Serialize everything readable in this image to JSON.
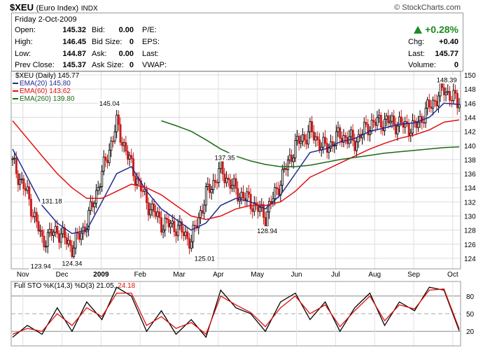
{
  "header": {
    "symbol": "$XEU",
    "name": "(Euro Index)",
    "exchange": "INDX",
    "brand": "© StockCharts.com"
  },
  "quote": {
    "date": "Friday  2-Oct-2009",
    "open_label": "Open:",
    "open": "145.32",
    "high_label": "High:",
    "high": "146.45",
    "low_label": "Low:",
    "low": "144.87",
    "prev_label": "Prev Close:",
    "prev": "145.37",
    "bid_label": "Bid:",
    "bid": "0.00",
    "bidsize_label": "Bid Size:",
    "bidsize": "0",
    "ask_label": "Ask:",
    "ask": "0.00",
    "asksize_label": "Ask Size:",
    "asksize": "0",
    "pe_label": "P/E:",
    "eps_label": "EPS:",
    "last_label_mid": "Last:",
    "vwap_label": "VWAP:",
    "pct_change": "+0.28%",
    "chg_label": "Chg:",
    "chg": "+0.40",
    "last_label": "Last:",
    "last": "145.77",
    "volume_label": "Volume:",
    "volume": "0"
  },
  "legend": {
    "main": "$XEU (Daily) 145.77",
    "ema20": "EMA(20) 145.80",
    "ema60": "EMA(60) 143.62",
    "ema260": "EMA(260) 139.80"
  },
  "sto_legend": {
    "label": "Full STO %K(14,3) %D(3) 21.05,",
    "d_value": "24.18"
  },
  "colors": {
    "ema20": "#1f2b8f",
    "ema60": "#e01010",
    "ema260": "#1a6b1a",
    "price_up": "#000000",
    "price_down": "#cc1e1e",
    "sto_k": "#000000",
    "sto_d": "#e01010"
  },
  "chart_data": [
    {
      "type": "line",
      "subtype": "candlestick",
      "title": "$XEU (Daily) 145.77",
      "x_ticks": [
        "Nov",
        "Dec",
        "2009",
        "Feb",
        "Mar",
        "Apr",
        "May",
        "Jun",
        "Jul",
        "Aug",
        "Sep",
        "Oct"
      ],
      "y_ticks": [
        124,
        126,
        128,
        130,
        132,
        134,
        136,
        138,
        140,
        142,
        144,
        146,
        148,
        150
      ],
      "ylim": [
        122.5,
        150.5
      ],
      "grid": true,
      "legend_position": "top-left",
      "annotations": [
        {
          "label": "123.94",
          "x": 0.063,
          "y": 123.94
        },
        {
          "label": "124.34",
          "x": 0.133,
          "y": 124.34
        },
        {
          "label": "131.18",
          "x": 0.088,
          "y": 131.18
        },
        {
          "label": "145.04",
          "x": 0.217,
          "y": 145.04
        },
        {
          "label": "137.35",
          "x": 0.475,
          "y": 137.35
        },
        {
          "label": "125.01",
          "x": 0.43,
          "y": 125.01
        },
        {
          "label": "128.94",
          "x": 0.57,
          "y": 128.94
        },
        {
          "label": "148.39",
          "x": 0.972,
          "y": 148.39
        }
      ],
      "series": [
        {
          "name": "$XEU",
          "x": [
            0.0,
            0.033,
            0.066,
            0.1,
            0.133,
            0.166,
            0.2,
            0.233,
            0.266,
            0.3,
            0.333,
            0.366,
            0.4,
            0.433,
            0.466,
            0.5,
            0.533,
            0.566,
            0.6,
            0.633,
            0.666,
            0.7,
            0.733,
            0.766,
            0.8,
            0.833,
            0.866,
            0.9,
            0.933,
            0.966,
            1.0
          ],
          "values": [
            137.5,
            133.0,
            126.5,
            128.0,
            125.5,
            129.0,
            136.0,
            143.0,
            137.0,
            132.0,
            129.0,
            128.5,
            126.5,
            133.0,
            136.5,
            133.5,
            132.0,
            130.0,
            135.0,
            140.0,
            142.0,
            139.5,
            141.5,
            140.5,
            143.0,
            143.5,
            143.0,
            142.5,
            145.5,
            148.0,
            145.77
          ]
        },
        {
          "name": "EMA(20)",
          "x": [
            0.0,
            0.033,
            0.066,
            0.1,
            0.133,
            0.166,
            0.2,
            0.233,
            0.266,
            0.3,
            0.333,
            0.366,
            0.4,
            0.433,
            0.466,
            0.5,
            0.533,
            0.566,
            0.6,
            0.633,
            0.666,
            0.7,
            0.733,
            0.766,
            0.8,
            0.833,
            0.866,
            0.9,
            0.933,
            0.966,
            1.0
          ],
          "values": [
            139.5,
            135.5,
            131.5,
            129.0,
            127.5,
            128.0,
            132.0,
            136.0,
            137.0,
            133.5,
            131.0,
            129.5,
            128.0,
            129.0,
            131.5,
            132.5,
            132.0,
            131.0,
            133.0,
            136.0,
            139.0,
            139.5,
            140.5,
            141.0,
            142.0,
            142.5,
            143.0,
            143.2,
            144.0,
            146.0,
            145.8
          ]
        },
        {
          "name": "EMA(60)",
          "x": [
            0.0,
            0.033,
            0.066,
            0.1,
            0.133,
            0.166,
            0.2,
            0.233,
            0.266,
            0.3,
            0.333,
            0.366,
            0.4,
            0.433,
            0.466,
            0.5,
            0.533,
            0.566,
            0.6,
            0.633,
            0.666,
            0.7,
            0.733,
            0.766,
            0.8,
            0.833,
            0.866,
            0.9,
            0.933,
            0.966,
            1.0
          ],
          "values": [
            143.5,
            141.0,
            138.5,
            136.0,
            134.0,
            132.5,
            132.5,
            133.5,
            134.5,
            134.0,
            133.0,
            131.5,
            130.0,
            129.5,
            130.0,
            131.0,
            131.5,
            131.5,
            132.0,
            133.5,
            135.5,
            136.5,
            137.5,
            138.5,
            139.5,
            140.3,
            141.0,
            141.5,
            142.2,
            143.3,
            143.62
          ]
        },
        {
          "name": "EMA(260)",
          "x": [
            0.0,
            0.033,
            0.066,
            0.1,
            0.133,
            0.166,
            0.2,
            0.233,
            0.266,
            0.3,
            0.333,
            0.366,
            0.4,
            0.433,
            0.466,
            0.5,
            0.533,
            0.566,
            0.6,
            0.633,
            0.666,
            0.7,
            0.733,
            0.766,
            0.8,
            0.833,
            0.866,
            0.9,
            0.933,
            0.966,
            1.0
          ],
          "values": [
            null,
            null,
            null,
            null,
            null,
            null,
            null,
            null,
            null,
            null,
            143.5,
            142.8,
            142.0,
            140.8,
            139.5,
            138.5,
            137.8,
            137.3,
            137.0,
            137.0,
            137.2,
            137.6,
            138.0,
            138.3,
            138.6,
            138.9,
            139.1,
            139.3,
            139.5,
            139.7,
            139.8
          ]
        }
      ]
    },
    {
      "type": "line",
      "title": "Full STO %K(14,3) %D(3) 21.05, 24.18",
      "y_ticks": [
        20,
        50,
        80
      ],
      "ylim": [
        0,
        100
      ],
      "grid": true,
      "series": [
        {
          "name": "%K",
          "x": [
            0.0,
            0.033,
            0.066,
            0.1,
            0.133,
            0.166,
            0.2,
            0.233,
            0.266,
            0.3,
            0.333,
            0.366,
            0.4,
            0.433,
            0.466,
            0.5,
            0.533,
            0.566,
            0.6,
            0.633,
            0.666,
            0.7,
            0.733,
            0.766,
            0.8,
            0.833,
            0.866,
            0.9,
            0.933,
            0.966,
            1.0
          ],
          "values": [
            10,
            30,
            15,
            60,
            20,
            70,
            40,
            95,
            80,
            20,
            55,
            15,
            40,
            10,
            90,
            60,
            50,
            20,
            70,
            85,
            40,
            70,
            20,
            60,
            85,
            30,
            70,
            55,
            95,
            90,
            21.05
          ]
        },
        {
          "name": "%D",
          "x": [
            0.0,
            0.033,
            0.066,
            0.1,
            0.133,
            0.166,
            0.2,
            0.233,
            0.266,
            0.3,
            0.333,
            0.366,
            0.4,
            0.433,
            0.466,
            0.5,
            0.533,
            0.566,
            0.6,
            0.633,
            0.666,
            0.7,
            0.733,
            0.766,
            0.8,
            0.833,
            0.866,
            0.9,
            0.933,
            0.966,
            1.0
          ],
          "values": [
            15,
            25,
            20,
            50,
            30,
            60,
            45,
            85,
            85,
            30,
            45,
            25,
            35,
            15,
            80,
            65,
            52,
            28,
            60,
            80,
            50,
            65,
            28,
            55,
            80,
            38,
            65,
            58,
            90,
            92,
            24.18
          ]
        }
      ]
    }
  ]
}
